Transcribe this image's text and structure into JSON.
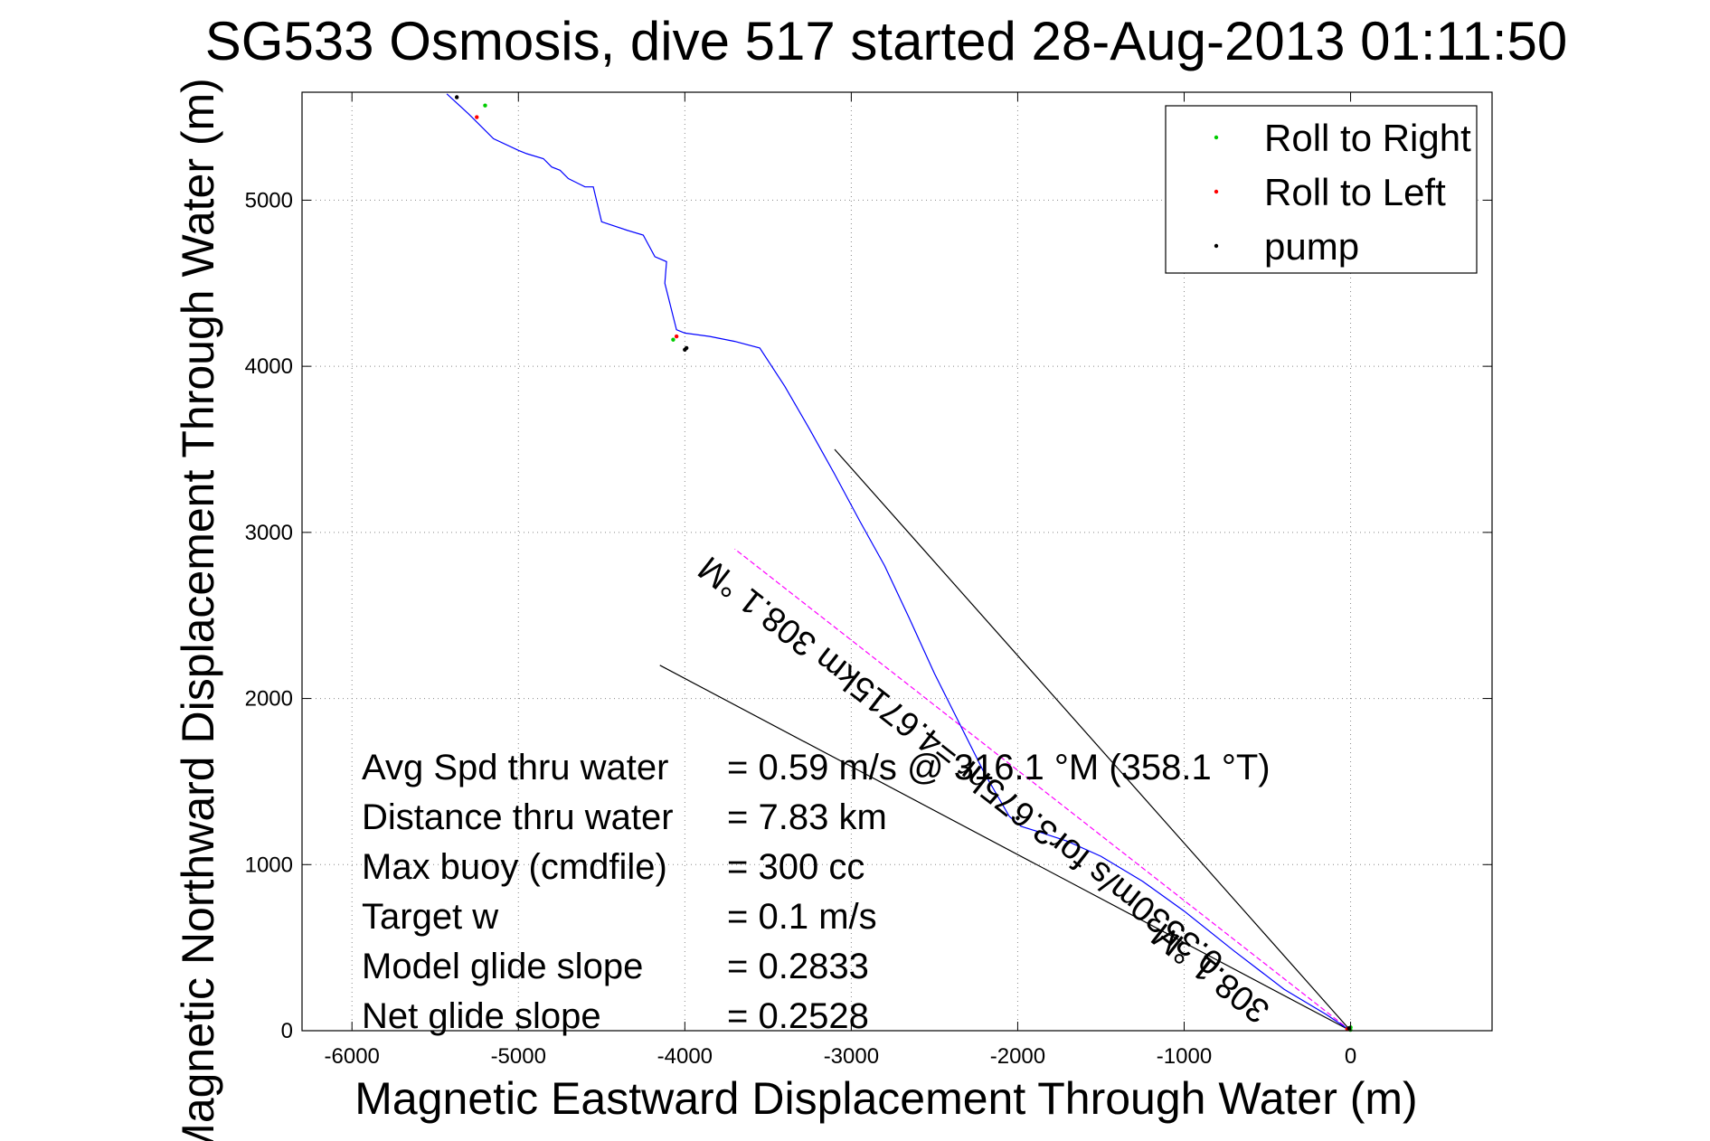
{
  "chart_data": {
    "type": "line",
    "title": "SG533 Osmosis, dive 517 started 28-Aug-2013 01:11:50",
    "xlabel": "Magnetic Eastward Displacement Through Water (m)",
    "ylabel": "Magnetic Northward Displacement Through Water (m)",
    "xlim": [
      -6300,
      850
    ],
    "ylim": [
      0,
      5650
    ],
    "xticks": [
      -6000,
      -5000,
      -4000,
      -3000,
      -2000,
      -1000,
      0
    ],
    "yticks": [
      0,
      1000,
      2000,
      3000,
      4000,
      5000
    ],
    "xtick_labels": [
      "-6000",
      "-5000",
      "-4000",
      "-3000",
      "-2000",
      "-1000",
      "0"
    ],
    "ytick_labels": [
      "0",
      "1000",
      "2000",
      "3000",
      "4000",
      "5000"
    ],
    "grid": true,
    "legend_position": "top-right",
    "legend": [
      {
        "label": "Roll to Right",
        "color": "#00cc00"
      },
      {
        "label": "Roll to Left",
        "color": "#ff0000"
      },
      {
        "label": "pump",
        "color": "#000000"
      }
    ],
    "track": {
      "color": "#0000ff",
      "x": [
        0,
        -150,
        -400,
        -700,
        -1000,
        -1250,
        -1500,
        -1700,
        -1850,
        -1980,
        -2050,
        -2200,
        -2350,
        -2500,
        -2650,
        -2800,
        -2950,
        -3100,
        -3250,
        -3400,
        -3550,
        -3700,
        -3850,
        -4000,
        -4050,
        -4070,
        -4120,
        -4110,
        -4180,
        -4250,
        -4350,
        -4500,
        -4550,
        -4600,
        -4700,
        -4750,
        -4800,
        -4850,
        -4950,
        -5000,
        -5150,
        -5300,
        -5430
      ],
      "y": [
        0,
        100,
        250,
        480,
        720,
        900,
        1050,
        1140,
        1190,
        1230,
        1290,
        1550,
        1850,
        2150,
        2480,
        2800,
        3070,
        3350,
        3620,
        3880,
        4110,
        4150,
        4180,
        4200,
        4220,
        4300,
        4500,
        4630,
        4660,
        4790,
        4820,
        4870,
        5080,
        5080,
        5130,
        5180,
        5200,
        5250,
        5280,
        5300,
        5370,
        5520,
        5640
      ]
    },
    "heading_line": {
      "color": "#ff00ff",
      "x": [
        0,
        -3700
      ],
      "y": [
        0,
        2900
      ]
    },
    "guide_lines": [
      {
        "color": "#000000",
        "x": [
          0,
          -3100
        ],
        "y": [
          0,
          3500
        ]
      },
      {
        "color": "#000000",
        "x": [
          0,
          -4150
        ],
        "y": [
          0,
          2200
        ]
      }
    ],
    "markers": [
      {
        "type": "right",
        "x": [
          0,
          -1,
          -5200,
          -4070
        ],
        "y": [
          20,
          5,
          5570,
          4160
        ]
      },
      {
        "type": "left",
        "x": [
          -20,
          -5250,
          -4050
        ],
        "y": [
          10,
          5500,
          4180
        ]
      },
      {
        "type": "pump",
        "x": [
          -10,
          -2000,
          -4000,
          -3990,
          -5370
        ],
        "y": [
          15,
          1280,
          4100,
          4110,
          5620
        ]
      }
    ],
    "stats": [
      {
        "label": "Avg Spd thru water",
        "value": "=  0.59 m/s @ 316.1 °M (358.1 °T)"
      },
      {
        "label": "Distance thru water",
        "value": "=  7.83 km"
      },
      {
        "label": "Max buoy (cmdfile)",
        "value": "= 300 cc"
      },
      {
        "label": "Target w",
        "value": "= 0.1 m/s"
      },
      {
        "label": "Model glide slope",
        "value": "= 0.2833"
      },
      {
        "label": "Net glide slope",
        "value": "= 0.2528"
      }
    ],
    "annotations": [
      {
        "text": "308.1 °M",
        "x": -800,
        "y": 400
      },
      {
        "text": "0.3530m/s for3.675hr =4.6715km 308.1 °M",
        "x": -2300,
        "y": 1650
      }
    ]
  }
}
